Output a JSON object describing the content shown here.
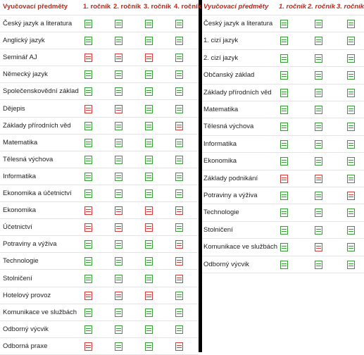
{
  "tables": [
    {
      "header_color": "#b5291b",
      "header_italic": false,
      "headers": [
        "Vyučovací předměty",
        "1. ročník",
        "2. ročník",
        "3. ročník",
        "4. ročník"
      ],
      "rows": [
        {
          "subject": "Český jazyk a literatura",
          "cells": [
            "#3a9a3a",
            "#3a9a3a",
            "#3a9a3a",
            "#3a9a3a"
          ]
        },
        {
          "subject": "Anglický jazyk",
          "cells": [
            "#3a9a3a",
            "#3a9a3a",
            "#3a9a3a",
            "#3a9a3a"
          ]
        },
        {
          "subject": "Seminář AJ",
          "cells": [
            "#d23c3c",
            "#d23c3c",
            "#d23c3c",
            "#3a9a3a"
          ]
        },
        {
          "subject": "Německý jazyk",
          "cells": [
            "#3a9a3a",
            "#3a9a3a",
            "#3a9a3a",
            "#3a9a3a"
          ]
        },
        {
          "subject": "Společenskovědní základ",
          "cells": [
            "#3a9a3a",
            "#3a9a3a",
            "#3a9a3a",
            "#3a9a3a"
          ]
        },
        {
          "subject": "Dějepis",
          "cells": [
            "#d23c3c",
            "#d23c3c",
            "#3a9a3a",
            "#3a9a3a"
          ]
        },
        {
          "subject": "Základy přírodních věd",
          "cells": [
            "#3a9a3a",
            "#3a9a3a",
            "#3a9a3a",
            "#d23c3c"
          ]
        },
        {
          "subject": "Matematika",
          "cells": [
            "#3a9a3a",
            "#3a9a3a",
            "#3a9a3a",
            "#3a9a3a"
          ]
        },
        {
          "subject": "Tělesná výchova",
          "cells": [
            "#3a9a3a",
            "#3a9a3a",
            "#3a9a3a",
            "#3a9a3a"
          ]
        },
        {
          "subject": "Informatika",
          "cells": [
            "#3a9a3a",
            "#3a9a3a",
            "#3a9a3a",
            "#3a9a3a"
          ]
        },
        {
          "subject": "Ekonomika a účetnictví",
          "cells": [
            "#3a9a3a",
            "#3a9a3a",
            "#3a9a3a",
            "#3a9a3a"
          ]
        },
        {
          "subject": "Ekonomika",
          "cells": [
            "#d23c3c",
            "#d23c3c",
            "#d23c3c",
            "#d23c3c"
          ]
        },
        {
          "subject": "Účetnictví",
          "cells": [
            "#d23c3c",
            "#d23c3c",
            "#d23c3c",
            "#3a9a3a"
          ]
        },
        {
          "subject": "Potraviny a výživa",
          "cells": [
            "#3a9a3a",
            "#3a9a3a",
            "#3a9a3a",
            "#d23c3c"
          ]
        },
        {
          "subject": "Technologie",
          "cells": [
            "#3a9a3a",
            "#3a9a3a",
            "#3a9a3a",
            "#d23c3c"
          ]
        },
        {
          "subject": "Stolničení",
          "cells": [
            "#3a9a3a",
            "#3a9a3a",
            "#3a9a3a",
            "#d23c3c"
          ]
        },
        {
          "subject": "Hotelový provoz",
          "cells": [
            "#d23c3c",
            "#d23c3c",
            "#d23c3c",
            "#3a9a3a"
          ]
        },
        {
          "subject": "Komunikace ve službách",
          "cells": [
            "#3a9a3a",
            "#3a9a3a",
            "#3a9a3a",
            "#3a9a3a"
          ]
        },
        {
          "subject": "Odborný výcvik",
          "cells": [
            "#3a9a3a",
            "#3a9a3a",
            "#3a9a3a",
            "#3a9a3a"
          ]
        },
        {
          "subject": "Odborná praxe",
          "cells": [
            "#d23c3c",
            "#3a9a3a",
            "#3a9a3a",
            "#d23c3c"
          ]
        }
      ]
    },
    {
      "header_color": "#c0261a",
      "header_italic": true,
      "headers": [
        "Vyučovací předměty",
        "1. ročník",
        "2. ročník",
        "3. ročník"
      ],
      "rows": [
        {
          "subject": "Český jazyk a literatura",
          "cells": [
            "#3a9a3a",
            "#3a9a3a",
            "#3a9a3a"
          ]
        },
        {
          "subject": "1. cizí jazyk",
          "cells": [
            "#3a9a3a",
            "#3a9a3a",
            "#3a9a3a"
          ]
        },
        {
          "subject": "2. cizí jazyk",
          "cells": [
            "#3a9a3a",
            "#3a9a3a",
            "#3a9a3a"
          ]
        },
        {
          "subject": "Občanský základ",
          "cells": [
            "#3a9a3a",
            "#3a9a3a",
            "#3a9a3a"
          ]
        },
        {
          "subject": "Základy přírodních věd",
          "cells": [
            "#3a9a3a",
            "#3a9a3a",
            "#3a9a3a"
          ]
        },
        {
          "subject": "Matematika",
          "cells": [
            "#3a9a3a",
            "#3a9a3a",
            "#3a9a3a"
          ]
        },
        {
          "subject": "Tělesná výchova",
          "cells": [
            "#3a9a3a",
            "#3a9a3a",
            "#3a9a3a"
          ]
        },
        {
          "subject": "Informatika",
          "cells": [
            "#3a9a3a",
            "#3a9a3a",
            "#3a9a3a"
          ]
        },
        {
          "subject": "Ekonomika",
          "cells": [
            "#3a9a3a",
            "#3a9a3a",
            "#3a9a3a"
          ]
        },
        {
          "subject": "Základy podnikání",
          "cells": [
            "#d23c3c",
            "#d23c3c",
            "#3a9a3a"
          ]
        },
        {
          "subject": "Potraviny a výživa",
          "cells": [
            "#3a9a3a",
            "#3a9a3a",
            "#d23c3c"
          ]
        },
        {
          "subject": "Technologie",
          "cells": [
            "#3a9a3a",
            "#3a9a3a",
            "#3a9a3a"
          ]
        },
        {
          "subject": "Stolničení",
          "cells": [
            "#3a9a3a",
            "#3a9a3a",
            "#3a9a3a"
          ]
        },
        {
          "subject": "Komunikace ve službách",
          "cells": [
            "#3a9a3a",
            "#d23c3c",
            "#3a9a3a"
          ]
        },
        {
          "subject": "Odborný výcvik",
          "cells": [
            "#3a9a3a",
            "#3a9a3a",
            "#3a9a3a"
          ]
        }
      ]
    }
  ]
}
